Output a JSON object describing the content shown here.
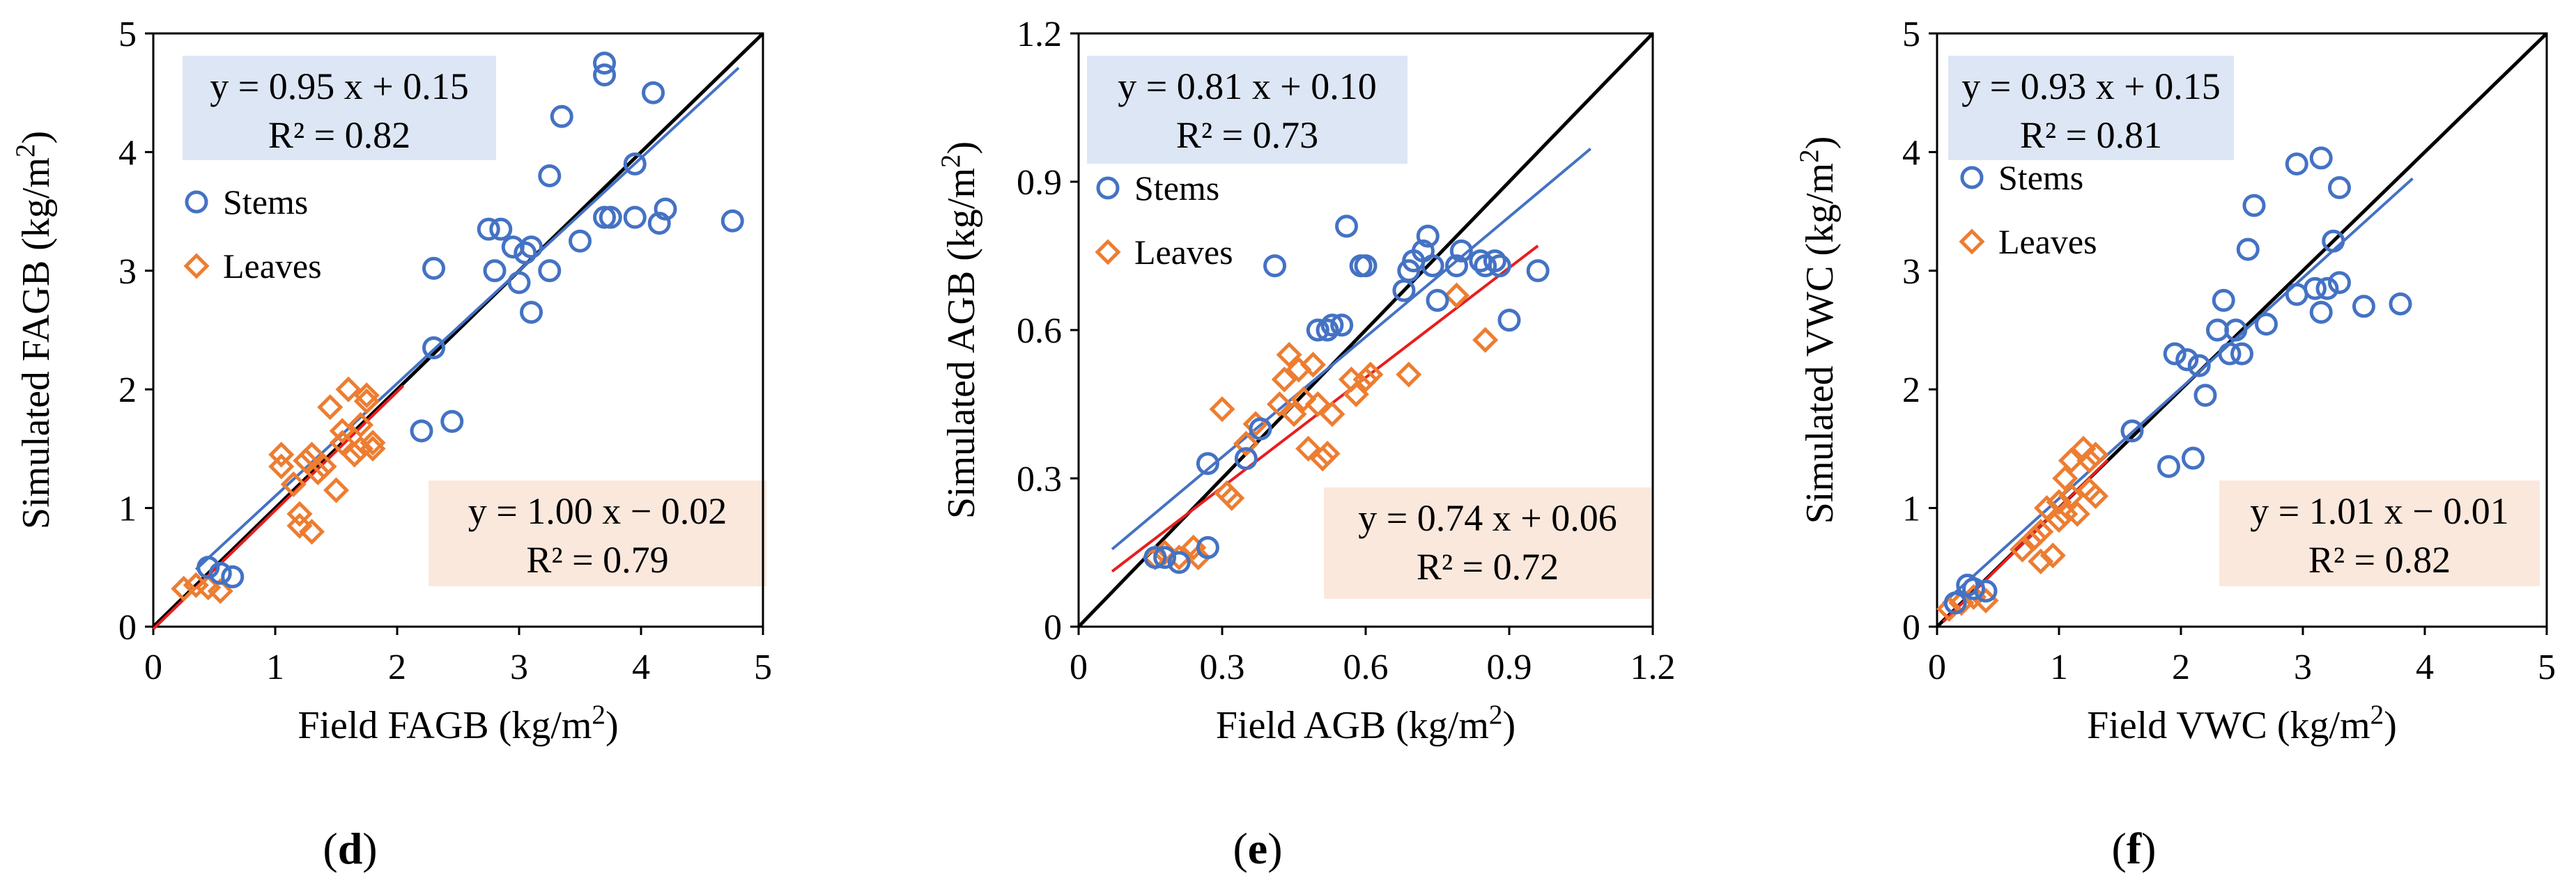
{
  "chart_data": [
    {
      "type": "scatter",
      "panel_label": "d",
      "xlabel": "Field FAGB (kg/m²)",
      "ylabel": "Simulated FAGB (kg/m²)",
      "xlim": [
        0,
        5
      ],
      "ylim": [
        0,
        5
      ],
      "xticks": [
        0,
        1,
        2,
        3,
        4,
        5
      ],
      "yticks": [
        0,
        1,
        2,
        3,
        4,
        5
      ],
      "legend": [
        "Stems",
        "Leaves"
      ],
      "series": [
        {
          "name": "Stems",
          "marker": "circle",
          "color": "#4472C4",
          "points": [
            [
              0.45,
              0.5
            ],
            [
              0.55,
              0.45
            ],
            [
              0.65,
              0.42
            ],
            [
              2.2,
              1.65
            ],
            [
              2.45,
              1.73
            ],
            [
              2.3,
              2.35
            ],
            [
              2.3,
              3.02
            ],
            [
              2.75,
              3.35
            ],
            [
              2.85,
              3.35
            ],
            [
              2.8,
              3.0
            ],
            [
              2.95,
              3.2
            ],
            [
              3.05,
              3.15
            ],
            [
              3.1,
              3.2
            ],
            [
              3.0,
              2.9
            ],
            [
              3.1,
              2.65
            ],
            [
              3.25,
              3.0
            ],
            [
              3.25,
              3.8
            ],
            [
              3.35,
              4.3
            ],
            [
              3.5,
              3.25
            ],
            [
              3.7,
              4.75
            ],
            [
              3.7,
              4.65
            ],
            [
              3.7,
              3.45
            ],
            [
              3.75,
              3.45
            ],
            [
              3.95,
              3.9
            ],
            [
              3.95,
              3.45
            ],
            [
              4.1,
              4.5
            ],
            [
              4.15,
              3.4
            ],
            [
              4.2,
              3.52
            ],
            [
              4.75,
              3.42
            ]
          ],
          "fit": {
            "equation": "y = 0.95 x + 0.15",
            "r2": "R² = 0.82",
            "slope": 0.95,
            "intercept": 0.15,
            "x_range": [
              0.35,
              4.8
            ]
          }
        },
        {
          "name": "Leaves",
          "marker": "diamond",
          "color": "#ED7D31",
          "points": [
            [
              0.25,
              0.32
            ],
            [
              0.35,
              0.35
            ],
            [
              0.45,
              0.33
            ],
            [
              0.55,
              0.3
            ],
            [
              1.05,
              1.45
            ],
            [
              1.05,
              1.35
            ],
            [
              1.15,
              1.2
            ],
            [
              1.2,
              0.95
            ],
            [
              1.2,
              0.85
            ],
            [
              1.25,
              1.4
            ],
            [
              1.3,
              1.45
            ],
            [
              1.3,
              0.8
            ],
            [
              1.35,
              1.3
            ],
            [
              1.4,
              1.35
            ],
            [
              1.45,
              1.85
            ],
            [
              1.5,
              1.15
            ],
            [
              1.55,
              1.55
            ],
            [
              1.6,
              2.0
            ],
            [
              1.65,
              1.45
            ],
            [
              1.7,
              1.7
            ],
            [
              1.7,
              1.5
            ],
            [
              1.75,
              1.9
            ],
            [
              1.75,
              1.95
            ],
            [
              1.8,
              1.55
            ],
            [
              1.8,
              1.5
            ],
            [
              1.55,
              1.65
            ]
          ],
          "fit": {
            "equation": "y = 1.00 x − 0.02",
            "r2": "R² = 0.79",
            "slope": 1.0,
            "intercept": -0.02,
            "x_range": [
              0.0,
              2.05
            ]
          }
        }
      ]
    },
    {
      "type": "scatter",
      "panel_label": "e",
      "xlabel": "Field AGB (kg/m²)",
      "ylabel": "Simulated AGB (kg/m²)",
      "xlim": [
        0,
        1.2
      ],
      "ylim": [
        0,
        1.2
      ],
      "xticks": [
        0,
        0.3,
        0.6,
        0.9,
        1.2
      ],
      "yticks": [
        0,
        0.3,
        0.6,
        0.9,
        1.2
      ],
      "legend": [
        "Stems",
        "Leaves"
      ],
      "series": [
        {
          "name": "Stems",
          "marker": "circle",
          "color": "#4472C4",
          "points": [
            [
              0.16,
              0.14
            ],
            [
              0.18,
              0.14
            ],
            [
              0.21,
              0.13
            ],
            [
              0.27,
              0.33
            ],
            [
              0.27,
              0.16
            ],
            [
              0.35,
              0.34
            ],
            [
              0.38,
              0.4
            ],
            [
              0.41,
              0.73
            ],
            [
              0.5,
              0.6
            ],
            [
              0.52,
              0.6
            ],
            [
              0.53,
              0.61
            ],
            [
              0.55,
              0.61
            ],
            [
              0.56,
              0.81
            ],
            [
              0.59,
              0.73
            ],
            [
              0.6,
              0.73
            ],
            [
              0.68,
              0.68
            ],
            [
              0.69,
              0.72
            ],
            [
              0.7,
              0.74
            ],
            [
              0.72,
              0.76
            ],
            [
              0.73,
              0.79
            ],
            [
              0.74,
              0.73
            ],
            [
              0.75,
              0.66
            ],
            [
              0.79,
              0.73
            ],
            [
              0.8,
              0.76
            ],
            [
              0.84,
              0.74
            ],
            [
              0.85,
              0.73
            ],
            [
              0.87,
              0.74
            ],
            [
              0.88,
              0.73
            ],
            [
              0.9,
              0.62
            ],
            [
              0.96,
              0.72
            ]
          ],
          "fit": {
            "equation": "y = 0.81 x + 0.10",
            "r2": "R² = 0.73",
            "slope": 0.81,
            "intercept": 0.1,
            "x_range": [
              0.07,
              1.07
            ]
          }
        },
        {
          "name": "Leaves",
          "marker": "diamond",
          "color": "#ED7D31",
          "points": [
            [
              0.16,
              0.14
            ],
            [
              0.18,
              0.15
            ],
            [
              0.21,
              0.14
            ],
            [
              0.24,
              0.16
            ],
            [
              0.25,
              0.14
            ],
            [
              0.3,
              0.44
            ],
            [
              0.31,
              0.27
            ],
            [
              0.32,
              0.26
            ],
            [
              0.35,
              0.37
            ],
            [
              0.37,
              0.41
            ],
            [
              0.42,
              0.45
            ],
            [
              0.43,
              0.5
            ],
            [
              0.44,
              0.55
            ],
            [
              0.45,
              0.43
            ],
            [
              0.46,
              0.52
            ],
            [
              0.47,
              0.46
            ],
            [
              0.48,
              0.36
            ],
            [
              0.49,
              0.53
            ],
            [
              0.5,
              0.45
            ],
            [
              0.51,
              0.34
            ],
            [
              0.52,
              0.35
            ],
            [
              0.53,
              0.43
            ],
            [
              0.57,
              0.5
            ],
            [
              0.58,
              0.47
            ],
            [
              0.6,
              0.5
            ],
            [
              0.61,
              0.51
            ],
            [
              0.69,
              0.51
            ],
            [
              0.79,
              0.67
            ],
            [
              0.85,
              0.58
            ]
          ],
          "fit": {
            "equation": "y = 0.74 x + 0.06",
            "r2": "R² = 0.72",
            "slope": 0.74,
            "intercept": 0.06,
            "x_range": [
              0.07,
              0.96
            ]
          }
        }
      ]
    },
    {
      "type": "scatter",
      "panel_label": "f",
      "xlabel": "Field VWC (kg/m²)",
      "ylabel": "Simulated VWC (kg/m²)",
      "xlim": [
        0,
        5
      ],
      "ylim": [
        0,
        5
      ],
      "xticks": [
        0,
        1,
        2,
        3,
        4,
        5
      ],
      "yticks": [
        0,
        1,
        2,
        3,
        4,
        5
      ],
      "legend": [
        "Stems",
        "Leaves"
      ],
      "series": [
        {
          "name": "Stems",
          "marker": "circle",
          "color": "#4472C4",
          "points": [
            [
              0.15,
              0.2
            ],
            [
              0.25,
              0.35
            ],
            [
              0.3,
              0.32
            ],
            [
              0.4,
              0.3
            ],
            [
              1.6,
              1.65
            ],
            [
              1.9,
              1.35
            ],
            [
              1.95,
              2.3
            ],
            [
              2.05,
              2.25
            ],
            [
              2.1,
              1.42
            ],
            [
              2.15,
              2.2
            ],
            [
              2.2,
              1.95
            ],
            [
              2.3,
              2.5
            ],
            [
              2.35,
              2.75
            ],
            [
              2.4,
              2.3
            ],
            [
              2.45,
              2.5
            ],
            [
              2.5,
              2.3
            ],
            [
              2.55,
              3.18
            ],
            [
              2.6,
              3.55
            ],
            [
              2.7,
              2.55
            ],
            [
              2.95,
              2.8
            ],
            [
              2.95,
              3.9
            ],
            [
              3.1,
              2.85
            ],
            [
              3.15,
              3.95
            ],
            [
              3.15,
              2.65
            ],
            [
              3.2,
              2.85
            ],
            [
              3.25,
              3.25
            ],
            [
              3.3,
              3.7
            ],
            [
              3.3,
              2.9
            ],
            [
              3.5,
              2.7
            ],
            [
              3.8,
              2.72
            ]
          ],
          "fit": {
            "equation": "y = 0.93 x + 0.15",
            "r2": "R² = 0.81",
            "slope": 0.93,
            "intercept": 0.15,
            "x_range": [
              0.05,
              3.9
            ]
          }
        },
        {
          "name": "Leaves",
          "marker": "diamond",
          "color": "#ED7D31",
          "points": [
            [
              0.1,
              0.15
            ],
            [
              0.2,
              0.2
            ],
            [
              0.3,
              0.25
            ],
            [
              0.4,
              0.22
            ],
            [
              0.7,
              0.65
            ],
            [
              0.8,
              0.75
            ],
            [
              0.85,
              0.8
            ],
            [
              0.9,
              1.0
            ],
            [
              0.95,
              0.6
            ],
            [
              1.0,
              1.05
            ],
            [
              1.05,
              1.25
            ],
            [
              1.05,
              0.95
            ],
            [
              1.1,
              1.4
            ],
            [
              1.1,
              1.1
            ],
            [
              1.15,
              0.95
            ],
            [
              1.2,
              1.5
            ],
            [
              1.25,
              1.4
            ],
            [
              1.25,
              1.15
            ],
            [
              1.3,
              1.1
            ],
            [
              1.3,
              1.45
            ],
            [
              1.0,
              0.9
            ],
            [
              0.85,
              0.55
            ]
          ],
          "fit": {
            "equation": "y = 1.01 x − 0.01",
            "r2": "R² = 0.82",
            "slope": 1.01,
            "intercept": -0.01,
            "x_range": [
              0.05,
              1.4
            ]
          }
        }
      ]
    }
  ]
}
